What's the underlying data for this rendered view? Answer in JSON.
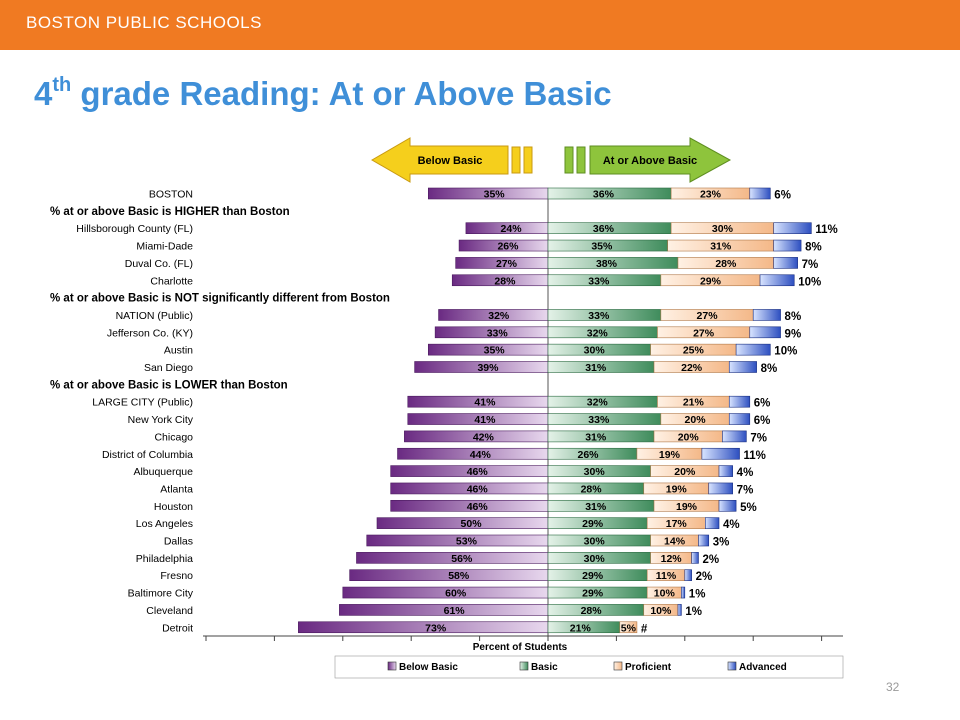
{
  "header": {
    "org": "BOSTON PUBLIC SCHOOLS"
  },
  "slide": {
    "title_num": "4",
    "title_sup": "th",
    "title_rest": " grade Reading: At or Above Basic",
    "page_number": "32"
  },
  "arrows": {
    "left": "Below Basic",
    "right": "At or Above Basic"
  },
  "colors": {
    "accent": "#f07a22",
    "title": "#3f8fd8",
    "below_basic": "#7b3a8e",
    "basic": "#4f9a6a",
    "proficient": "#f8c8a0",
    "advanced": "#3558c8"
  },
  "chart_data": {
    "type": "bar",
    "orientation": "horizontal-diverging",
    "xlabel": "Percent of Students",
    "legend": [
      "Below Basic",
      "Basic",
      "Proficient",
      "Advanced"
    ],
    "legend_position": "bottom",
    "rows": [
      {
        "kind": "jur",
        "name": "BOSTON",
        "below": 35,
        "basic": 36,
        "prof": 23,
        "adv": 6,
        "adv_label": "6%"
      },
      {
        "kind": "hdr",
        "name": "% at or above Basic is HIGHER than Boston"
      },
      {
        "kind": "jur",
        "name": "Hillsborough County (FL)",
        "below": 24,
        "basic": 36,
        "prof": 30,
        "adv": 11,
        "adv_label": "11%"
      },
      {
        "kind": "jur",
        "name": "Miami-Dade",
        "below": 26,
        "basic": 35,
        "prof": 31,
        "adv": 8,
        "adv_label": "8%"
      },
      {
        "kind": "jur",
        "name": "Duval Co. (FL)",
        "below": 27,
        "basic": 38,
        "prof": 28,
        "adv": 7,
        "adv_label": "7%"
      },
      {
        "kind": "jur",
        "name": "Charlotte",
        "below": 28,
        "basic": 33,
        "prof": 29,
        "adv": 10,
        "adv_label": "10%"
      },
      {
        "kind": "hdr",
        "name": "% at or above Basic is NOT significantly different from Boston"
      },
      {
        "kind": "jur",
        "name": "NATION (Public)",
        "below": 32,
        "basic": 33,
        "prof": 27,
        "adv": 8,
        "adv_label": "8%"
      },
      {
        "kind": "jur",
        "name": "Jefferson Co. (KY)",
        "below": 33,
        "basic": 32,
        "prof": 27,
        "adv": 9,
        "adv_label": "9%"
      },
      {
        "kind": "jur",
        "name": "Austin",
        "below": 35,
        "basic": 30,
        "prof": 25,
        "adv": 10,
        "adv_label": "10%"
      },
      {
        "kind": "jur",
        "name": "San Diego",
        "below": 39,
        "basic": 31,
        "prof": 22,
        "adv": 8,
        "adv_label": "8%"
      },
      {
        "kind": "hdr",
        "name": "% at or above Basic is LOWER than Boston"
      },
      {
        "kind": "jur",
        "name": "LARGE CITY (Public)",
        "below": 41,
        "basic": 32,
        "prof": 21,
        "adv": 6,
        "adv_label": "6%"
      },
      {
        "kind": "jur",
        "name": "New York City",
        "below": 41,
        "basic": 33,
        "prof": 20,
        "adv": 6,
        "adv_label": "6%"
      },
      {
        "kind": "jur",
        "name": "Chicago",
        "below": 42,
        "basic": 31,
        "prof": 20,
        "adv": 7,
        "adv_label": "7%"
      },
      {
        "kind": "jur",
        "name": "District of Columbia",
        "below": 44,
        "basic": 26,
        "prof": 19,
        "adv": 11,
        "adv_label": "11%"
      },
      {
        "kind": "jur",
        "name": "Albuquerque",
        "below": 46,
        "basic": 30,
        "prof": 20,
        "adv": 4,
        "adv_label": "4%"
      },
      {
        "kind": "jur",
        "name": "Atlanta",
        "below": 46,
        "basic": 28,
        "prof": 19,
        "adv": 7,
        "adv_label": "7%"
      },
      {
        "kind": "jur",
        "name": "Houston",
        "below": 46,
        "basic": 31,
        "prof": 19,
        "adv": 5,
        "adv_label": "5%"
      },
      {
        "kind": "jur",
        "name": "Los Angeles",
        "below": 50,
        "basic": 29,
        "prof": 17,
        "adv": 4,
        "adv_label": "4%"
      },
      {
        "kind": "jur",
        "name": "Dallas",
        "below": 53,
        "basic": 30,
        "prof": 14,
        "adv": 3,
        "adv_label": "3%"
      },
      {
        "kind": "jur",
        "name": "Philadelphia",
        "below": 56,
        "basic": 30,
        "prof": 12,
        "adv": 2,
        "adv_label": "2%"
      },
      {
        "kind": "jur",
        "name": "Fresno",
        "below": 58,
        "basic": 29,
        "prof": 11,
        "adv": 2,
        "adv_label": "2%"
      },
      {
        "kind": "jur",
        "name": "Baltimore City",
        "below": 60,
        "basic": 29,
        "prof": 10,
        "adv": 1,
        "adv_label": "1%"
      },
      {
        "kind": "jur",
        "name": "Cleveland",
        "below": 61,
        "basic": 28,
        "prof": 10,
        "adv": 1,
        "adv_label": "1%"
      },
      {
        "kind": "jur",
        "name": "Detroit",
        "below": 73,
        "basic": 21,
        "prof": 5,
        "adv": 0,
        "adv_label": "#"
      }
    ]
  }
}
